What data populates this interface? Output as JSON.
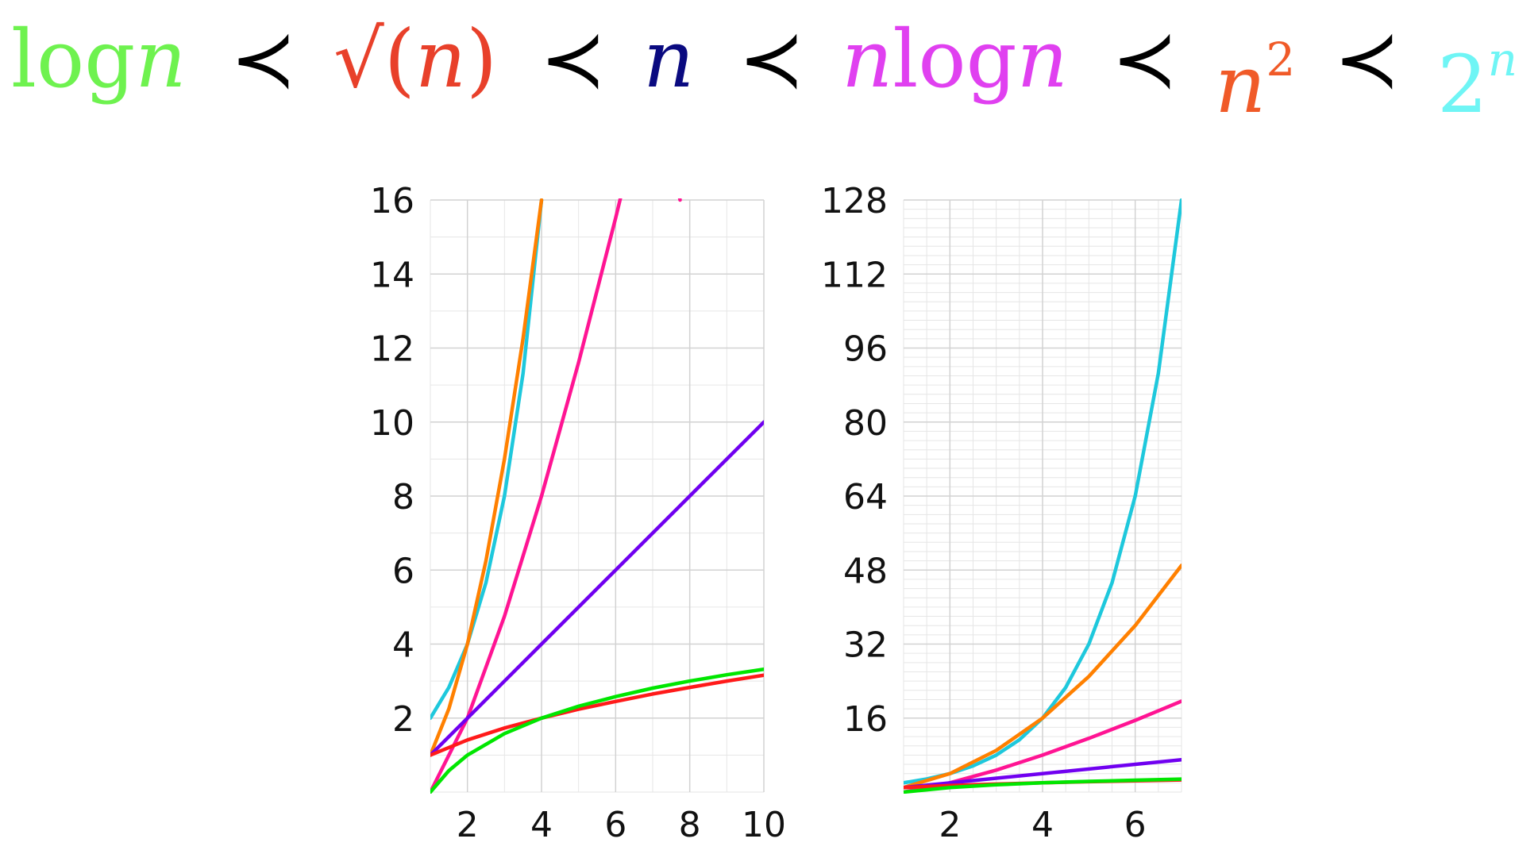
{
  "formula": {
    "separator": "≺",
    "terms": [
      {
        "pre": "log",
        "var": "n",
        "post": "",
        "color": "#6ef24f"
      },
      {
        "pre": "√(",
        "var": "n",
        "post": ")",
        "color": "#e8402a"
      },
      {
        "pre": "",
        "var": "n",
        "post": "",
        "color": "#0a0a80"
      },
      {
        "pre": "",
        "var": "n",
        "post": "log",
        "var2": "n",
        "color": "#e040f0"
      },
      {
        "pre": "",
        "var": "n",
        "post": "",
        "sup": "2",
        "color": "#f05a28"
      },
      {
        "pre": "2",
        "var": "",
        "post": "",
        "sup": "n",
        "color": "#6ff5f5"
      }
    ]
  },
  "chart_data": [
    {
      "type": "line",
      "xlim": [
        1,
        10
      ],
      "ylim": [
        0,
        16
      ],
      "xticks": [
        "2",
        "4",
        "6",
        "8",
        "10"
      ],
      "xtick_values": [
        2,
        4,
        6,
        8,
        10
      ],
      "yticks": [
        "2",
        "4",
        "6",
        "8",
        "10",
        "12",
        "14",
        "16"
      ],
      "ytick_values": [
        2,
        4,
        6,
        8,
        10,
        12,
        14,
        16
      ],
      "grid": true,
      "series": [
        {
          "color": "#1ec8dc",
          "x": [
            1,
            1.5,
            2,
            2.5,
            3,
            3.5,
            4
          ],
          "y": [
            2,
            2.83,
            4,
            5.66,
            8,
            11.31,
            16
          ]
        },
        {
          "color": "#ff8000",
          "x": [
            1,
            1.5,
            2,
            2.5,
            3,
            3.5,
            4
          ],
          "y": [
            1,
            2.25,
            4,
            6.25,
            9,
            12.25,
            16
          ]
        },
        {
          "color": "#ff1493",
          "x": [
            1,
            2,
            3,
            4,
            5,
            6,
            7,
            7.74
          ],
          "y": [
            0,
            2,
            4.75,
            8,
            11.61,
            15.51,
            19.65,
            16
          ]
        },
        {
          "color": "#7000f0",
          "x": [
            1,
            2,
            4,
            6,
            8,
            10
          ],
          "y": [
            1,
            2,
            4,
            6,
            8,
            10
          ]
        },
        {
          "color": "#ff1a1a",
          "x": [
            1,
            2,
            3,
            4,
            5,
            6,
            7,
            8,
            9,
            10
          ],
          "y": [
            1,
            1.41,
            1.73,
            2,
            2.24,
            2.45,
            2.65,
            2.83,
            3,
            3.16
          ]
        },
        {
          "color": "#00e600",
          "x": [
            1,
            1.5,
            2,
            3,
            4,
            5,
            6,
            7,
            8,
            9,
            10
          ],
          "y": [
            0,
            0.58,
            1,
            1.58,
            2,
            2.32,
            2.58,
            2.81,
            3,
            3.17,
            3.32
          ]
        }
      ]
    },
    {
      "type": "line",
      "xlim": [
        1,
        7
      ],
      "ylim": [
        0,
        128
      ],
      "xticks": [
        "2",
        "4",
        "6"
      ],
      "xtick_values": [
        2,
        4,
        6
      ],
      "yticks": [
        "16",
        "32",
        "48",
        "64",
        "80",
        "96",
        "112",
        "128"
      ],
      "ytick_values": [
        16,
        32,
        48,
        64,
        80,
        96,
        112,
        128
      ],
      "grid": true,
      "series": [
        {
          "color": "#1ec8dc",
          "x": [
            1,
            1.5,
            2,
            2.5,
            3,
            3.5,
            4,
            4.5,
            5,
            5.5,
            6,
            6.5,
            7
          ],
          "y": [
            2,
            2.83,
            4,
            5.66,
            8,
            11.31,
            16,
            22.63,
            32,
            45.25,
            64,
            90.51,
            128
          ]
        },
        {
          "color": "#ff8000",
          "x": [
            1,
            2,
            3,
            4,
            5,
            6,
            7
          ],
          "y": [
            1,
            4,
            9,
            16,
            25,
            36,
            49
          ]
        },
        {
          "color": "#ff1493",
          "x": [
            1,
            2,
            3,
            4,
            5,
            6,
            7
          ],
          "y": [
            0,
            2,
            4.75,
            8,
            11.61,
            15.51,
            19.65
          ]
        },
        {
          "color": "#7000f0",
          "x": [
            1,
            7
          ],
          "y": [
            1,
            7
          ]
        },
        {
          "color": "#ff1a1a",
          "x": [
            1,
            2,
            3,
            4,
            5,
            6,
            7
          ],
          "y": [
            1,
            1.41,
            1.73,
            2,
            2.24,
            2.45,
            2.65
          ]
        },
        {
          "color": "#00e600",
          "x": [
            1,
            2,
            3,
            4,
            5,
            6,
            7
          ],
          "y": [
            0,
            1,
            1.58,
            2,
            2.32,
            2.58,
            2.81
          ]
        }
      ]
    }
  ]
}
